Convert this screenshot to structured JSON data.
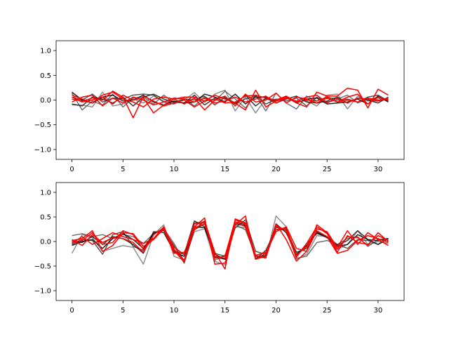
{
  "figure": {
    "background": "#ffffff"
  },
  "chart_data": [
    {
      "type": "line",
      "title": "",
      "xlabel": "",
      "ylabel": "",
      "xlim": [
        -1.55,
        32.55
      ],
      "ylim": [
        -1.2,
        1.2
      ],
      "xticks": [
        0,
        5,
        10,
        15,
        20,
        25,
        30
      ],
      "yticks": [
        -1.0,
        -0.5,
        0.0,
        0.5,
        1.0
      ],
      "xtick_labels": [
        "0",
        "5",
        "10",
        "15",
        "20",
        "25",
        "30"
      ],
      "ytick_labels": [
        "−1.0",
        "−0.5",
        "0.0",
        "0.5",
        "1.0"
      ],
      "grid": false,
      "x": [
        0,
        1,
        2,
        3,
        4,
        5,
        6,
        7,
        8,
        9,
        10,
        11,
        12,
        13,
        14,
        15,
        16,
        17,
        18,
        19,
        20,
        21,
        22,
        23,
        24,
        25,
        26,
        27,
        28,
        29,
        30,
        31
      ],
      "series": [
        {
          "color": "#7a7a7a",
          "values": [
            -0.1,
            -0.1,
            -0.14,
            0.16,
            -0.12,
            -0.08,
            0.02,
            -0.06,
            0.08,
            -0.02,
            -0.04,
            0.0,
            0.15,
            -0.05,
            0.12,
            0.2,
            -0.22,
            0.06,
            -0.26,
            0.02,
            -0.02,
            0.04,
            -0.02,
            -0.02,
            -0.12,
            0.1,
            0.12,
            -0.18,
            0.08,
            -0.02,
            -0.02,
            0.02
          ]
        },
        {
          "color": "#5a5a5a",
          "values": [
            0.14,
            -0.2,
            -0.02,
            -0.1,
            0.12,
            -0.14,
            0.04,
            0.06,
            -0.08,
            0.1,
            -0.06,
            0.04,
            -0.12,
            0.06,
            -0.02,
            0.18,
            0.02,
            -0.16,
            0.1,
            -0.22,
            0.14,
            -0.06,
            -0.18,
            0.08,
            -0.02,
            0.06,
            0.02,
            0.1,
            -0.06,
            0.02,
            0.04,
            -0.02
          ]
        },
        {
          "color": "#3a3a3a",
          "values": [
            0.06,
            0.0,
            0.12,
            -0.04,
            0.04,
            0.02,
            0.1,
            0.12,
            0.1,
            -0.04,
            -0.08,
            0.02,
            0.0,
            0.08,
            -0.1,
            0.06,
            -0.06,
            0.02,
            0.08,
            -0.08,
            0.02,
            -0.02,
            0.04,
            -0.12,
            0.06,
            -0.04,
            0.0,
            0.02,
            -0.04,
            0.06,
            0.1,
            -0.02
          ]
        },
        {
          "color": "#1a1a1a",
          "values": [
            -0.08,
            -0.12,
            0.06,
            0.02,
            -0.06,
            0.06,
            -0.12,
            0.06,
            0.12,
            0.02,
            -0.04,
            -0.06,
            0.1,
            -0.1,
            0.04,
            0.04,
            -0.08,
            0.1,
            -0.12,
            0.04,
            -0.06,
            0.02,
            0.08,
            -0.04,
            -0.06,
            -0.02,
            0.06,
            -0.06,
            0.04,
            0.0,
            -0.06,
            0.06
          ]
        },
        {
          "color": "#000000",
          "values": [
            0.16,
            0.0,
            -0.06,
            0.06,
            0.1,
            -0.02,
            0.0,
            0.1,
            -0.04,
            -0.1,
            -0.02,
            -0.06,
            -0.04,
            0.12,
            0.06,
            -0.04,
            0.12,
            -0.08,
            0.06,
            0.06,
            -0.02,
            0.06,
            -0.06,
            0.02,
            0.04,
            -0.08,
            -0.06,
            -0.04,
            0.02,
            -0.08,
            0.08,
            -0.04
          ]
        },
        {
          "color": "#ff0000",
          "values": [
            0.02,
            -0.02,
            0.04,
            0.0,
            0.18,
            0.06,
            -0.36,
            0.08,
            -0.02,
            -0.12,
            -0.06,
            0.0,
            -0.14,
            -0.02,
            0.1,
            0.02,
            -0.06,
            -0.2,
            0.2,
            -0.14,
            -0.02,
            0.06,
            -0.06,
            -0.14,
            0.16,
            0.08,
            0.08,
            0.24,
            0.2,
            -0.16,
            0.22,
            0.1
          ]
        },
        {
          "color": "#ff0000",
          "values": [
            0.1,
            0.02,
            -0.06,
            0.1,
            0.16,
            0.02,
            -0.04,
            -0.14,
            0.02,
            0.06,
            0.02,
            -0.08,
            0.04,
            -0.2,
            0.0,
            0.08,
            -0.12,
            0.12,
            -0.04,
            0.0,
            0.14,
            -0.06,
            0.06,
            0.02,
            -0.06,
            0.04,
            -0.04,
            0.06,
            0.12,
            -0.08,
            0.06,
            0.0
          ]
        },
        {
          "color": "#ff0000",
          "values": [
            -0.04,
            0.06,
            0.1,
            -0.12,
            0.04,
            -0.06,
            0.06,
            0.0,
            -0.1,
            -0.04,
            0.04,
            0.02,
            -0.04,
            0.04,
            -0.06,
            -0.02,
            0.06,
            -0.04,
            0.02,
            0.08,
            -0.06,
            0.04,
            -0.02,
            0.06,
            0.1,
            -0.06,
            0.04,
            -0.06,
            0.04,
            0.02,
            -0.02,
            0.04
          ]
        },
        {
          "color": "#ff0000",
          "values": [
            0.06,
            -0.04,
            0.0,
            0.06,
            -0.08,
            0.1,
            0.0,
            0.04,
            -0.26,
            -0.1,
            0.02,
            0.06,
            0.06,
            -0.02,
            0.02,
            -0.06,
            -0.04,
            0.08,
            0.1,
            0.04,
            0.0,
            0.08,
            -0.04,
            0.0,
            -0.02,
            0.06,
            -0.04,
            0.0,
            -0.04,
            0.04,
            0.0,
            0.02
          ]
        }
      ]
    },
    {
      "type": "line",
      "title": "",
      "xlabel": "",
      "ylabel": "",
      "xlim": [
        -1.55,
        32.55
      ],
      "ylim": [
        -1.2,
        1.2
      ],
      "xticks": [
        0,
        5,
        10,
        15,
        20,
        25,
        30
      ],
      "yticks": [
        -1.0,
        -0.5,
        0.0,
        0.5,
        1.0
      ],
      "xtick_labels": [
        "0",
        "5",
        "10",
        "15",
        "20",
        "25",
        "30"
      ],
      "ytick_labels": [
        "−1.0",
        "−0.5",
        "0.0",
        "0.5",
        "1.0"
      ],
      "grid": false,
      "x": [
        0,
        1,
        2,
        3,
        4,
        5,
        6,
        7,
        8,
        9,
        10,
        11,
        12,
        13,
        14,
        15,
        16,
        17,
        18,
        19,
        20,
        21,
        22,
        23,
        24,
        25,
        26,
        27,
        28,
        29,
        30,
        31
      ],
      "series": [
        {
          "color": "#7a7a7a",
          "values": [
            -0.24,
            0.14,
            0.08,
            -0.2,
            -0.14,
            -0.08,
            -0.12,
            -0.46,
            0.14,
            0.34,
            -0.3,
            -0.38,
            0.2,
            0.26,
            -0.4,
            -0.48,
            0.3,
            0.28,
            -0.3,
            -0.34,
            0.52,
            0.3,
            -0.36,
            -0.26,
            0.12,
            0.1,
            -0.16,
            -0.06,
            0.22,
            -0.06,
            0.0,
            -0.04
          ]
        },
        {
          "color": "#5a5a5a",
          "values": [
            0.12,
            0.16,
            0.1,
            0.14,
            0.06,
            0.14,
            0.1,
            -0.04,
            0.16,
            0.26,
            -0.04,
            -0.4,
            0.38,
            0.4,
            -0.38,
            -0.28,
            0.34,
            0.24,
            -0.28,
            -0.34,
            0.3,
            0.22,
            -0.34,
            -0.3,
            -0.02,
            0.02,
            -0.06,
            0.06,
            0.1,
            -0.1,
            0.04,
            0.06
          ]
        },
        {
          "color": "#3a3a3a",
          "values": [
            -0.06,
            0.04,
            0.02,
            -0.26,
            0.14,
            0.2,
            -0.1,
            -0.18,
            0.18,
            0.22,
            -0.08,
            -0.44,
            0.24,
            0.36,
            -0.24,
            -0.3,
            0.28,
            0.44,
            -0.2,
            -0.26,
            0.28,
            0.26,
            -0.3,
            -0.04,
            0.16,
            0.1,
            -0.06,
            -0.14,
            0.04,
            0.02,
            -0.06,
            0.06
          ]
        },
        {
          "color": "#1a1a1a",
          "values": [
            0.0,
            -0.02,
            0.1,
            -0.06,
            0.1,
            0.06,
            -0.06,
            -0.24,
            0.2,
            0.18,
            -0.2,
            -0.26,
            0.42,
            0.3,
            -0.32,
            -0.36,
            0.4,
            0.34,
            -0.36,
            -0.18,
            0.24,
            0.24,
            -0.22,
            -0.14,
            0.2,
            0.08,
            -0.08,
            0.02,
            0.22,
            0.04,
            -0.06,
            0.06
          ]
        },
        {
          "color": "#000000",
          "values": [
            -0.08,
            0.0,
            0.04,
            -0.14,
            0.06,
            0.16,
            0.04,
            -0.14,
            0.16,
            0.24,
            -0.22,
            -0.3,
            0.3,
            0.28,
            -0.26,
            -0.36,
            0.36,
            0.32,
            -0.34,
            -0.28,
            0.36,
            0.18,
            -0.26,
            -0.08,
            0.18,
            0.08,
            -0.1,
            -0.06,
            0.14,
            0.04,
            0.02,
            0.06
          ]
        },
        {
          "color": "#ff0000",
          "values": [
            0.02,
            0.06,
            0.22,
            -0.2,
            -0.08,
            0.18,
            0.16,
            -0.1,
            0.04,
            0.26,
            -0.18,
            -0.42,
            0.3,
            0.48,
            -0.46,
            -0.44,
            0.34,
            0.52,
            -0.36,
            -0.3,
            0.36,
            0.04,
            -0.4,
            -0.2,
            0.34,
            0.18,
            -0.22,
            0.12,
            -0.02,
            -0.06,
            0.12,
            0.02
          ]
        },
        {
          "color": "#ff0000",
          "values": [
            -0.04,
            0.1,
            -0.06,
            0.06,
            0.18,
            0.1,
            0.04,
            -0.04,
            0.06,
            0.26,
            -0.24,
            -0.22,
            0.24,
            0.42,
            -0.22,
            -0.56,
            0.46,
            0.38,
            -0.28,
            -0.22,
            0.24,
            0.28,
            -0.28,
            -0.1,
            0.26,
            0.2,
            -0.12,
            0.22,
            -0.06,
            0.18,
            0.04,
            -0.08
          ]
        },
        {
          "color": "#ff0000",
          "values": [
            0.04,
            -0.08,
            0.14,
            -0.02,
            0.08,
            0.06,
            -0.02,
            -0.22,
            0.14,
            0.28,
            -0.12,
            -0.26,
            0.36,
            0.38,
            -0.34,
            -0.3,
            0.44,
            0.36,
            -0.36,
            -0.24,
            0.2,
            0.3,
            -0.14,
            -0.2,
            0.22,
            0.1,
            -0.24,
            -0.18,
            0.02,
            0.12,
            0.06,
            -0.02
          ]
        },
        {
          "color": "#ff0000",
          "values": [
            -0.02,
            0.02,
            0.18,
            -0.06,
            -0.02,
            0.22,
            0.14,
            -0.16,
            0.06,
            0.3,
            -0.16,
            -0.38,
            0.28,
            0.36,
            -0.3,
            -0.34,
            0.4,
            0.3,
            -0.3,
            -0.32,
            0.32,
            0.22,
            -0.32,
            -0.04,
            0.3,
            0.16,
            -0.16,
            0.1,
            0.08,
            -0.08,
            0.18,
            0.0
          ]
        }
      ]
    }
  ]
}
